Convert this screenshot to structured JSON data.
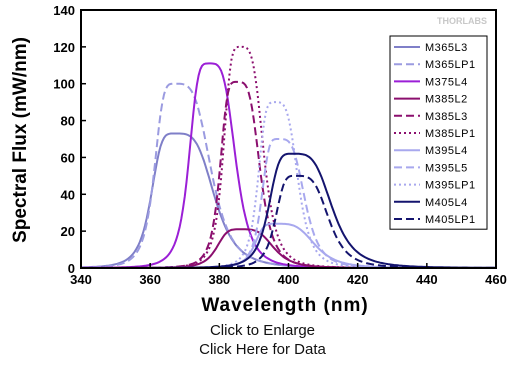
{
  "watermark": "THORLABS",
  "links": {
    "enlarge": "Click to Enlarge",
    "data": "Click Here for Data"
  },
  "chart_data": {
    "type": "line",
    "title": "",
    "xlabel": "Wavelength (nm)",
    "ylabel": "Spectral Flux (mW/nm)",
    "xlim": [
      340,
      460
    ],
    "ylim": [
      0,
      140
    ],
    "xticks": [
      340,
      360,
      380,
      400,
      420,
      440,
      460
    ],
    "yticks": [
      0,
      20,
      40,
      60,
      80,
      100,
      120,
      140
    ],
    "legend_position": "top-right",
    "series": [
      {
        "name": "M365L3",
        "color": "#7f7fc8",
        "dash": "solid",
        "peak": 367,
        "value": 73,
        "wl": 7,
        "wr": 12
      },
      {
        "name": "M365LP1",
        "color": "#9b9be0",
        "dash": "dashed",
        "peak": 367,
        "value": 100,
        "wl": 6,
        "wr": 11
      },
      {
        "name": "M375L4",
        "color": "#9b1fd6",
        "dash": "solid",
        "peak": 377,
        "value": 111,
        "wl": 6,
        "wr": 8
      },
      {
        "name": "M385L2",
        "color": "#8b0f6e",
        "dash": "solid",
        "peak": 386,
        "value": 21,
        "wl": 7,
        "wr": 10
      },
      {
        "name": "M385L3",
        "color": "#8b0f6e",
        "dash": "dashed",
        "peak": 385,
        "value": 101,
        "wl": 5,
        "wr": 7
      },
      {
        "name": "M385LP1",
        "color": "#8b0f6e",
        "dash": "dotted",
        "peak": 386,
        "value": 120,
        "wl": 5,
        "wr": 7
      },
      {
        "name": "M395L4",
        "color": "#a8a8ee",
        "dash": "solid",
        "peak": 396,
        "value": 24,
        "wl": 6,
        "wr": 12
      },
      {
        "name": "M395L5",
        "color": "#a8a8ee",
        "dash": "dashed",
        "peak": 397,
        "value": 70,
        "wl": 5,
        "wr": 8
      },
      {
        "name": "M395LP1",
        "color": "#a8a8ee",
        "dash": "dotted",
        "peak": 396,
        "value": 90,
        "wl": 5,
        "wr": 7
      },
      {
        "name": "M405L4",
        "color": "#14146e",
        "dash": "solid",
        "peak": 401,
        "value": 62,
        "wl": 7,
        "wr": 12
      },
      {
        "name": "M405LP1",
        "color": "#14146e",
        "dash": "dashed",
        "peak": 402,
        "value": 50,
        "wl": 6,
        "wr": 10
      }
    ]
  }
}
